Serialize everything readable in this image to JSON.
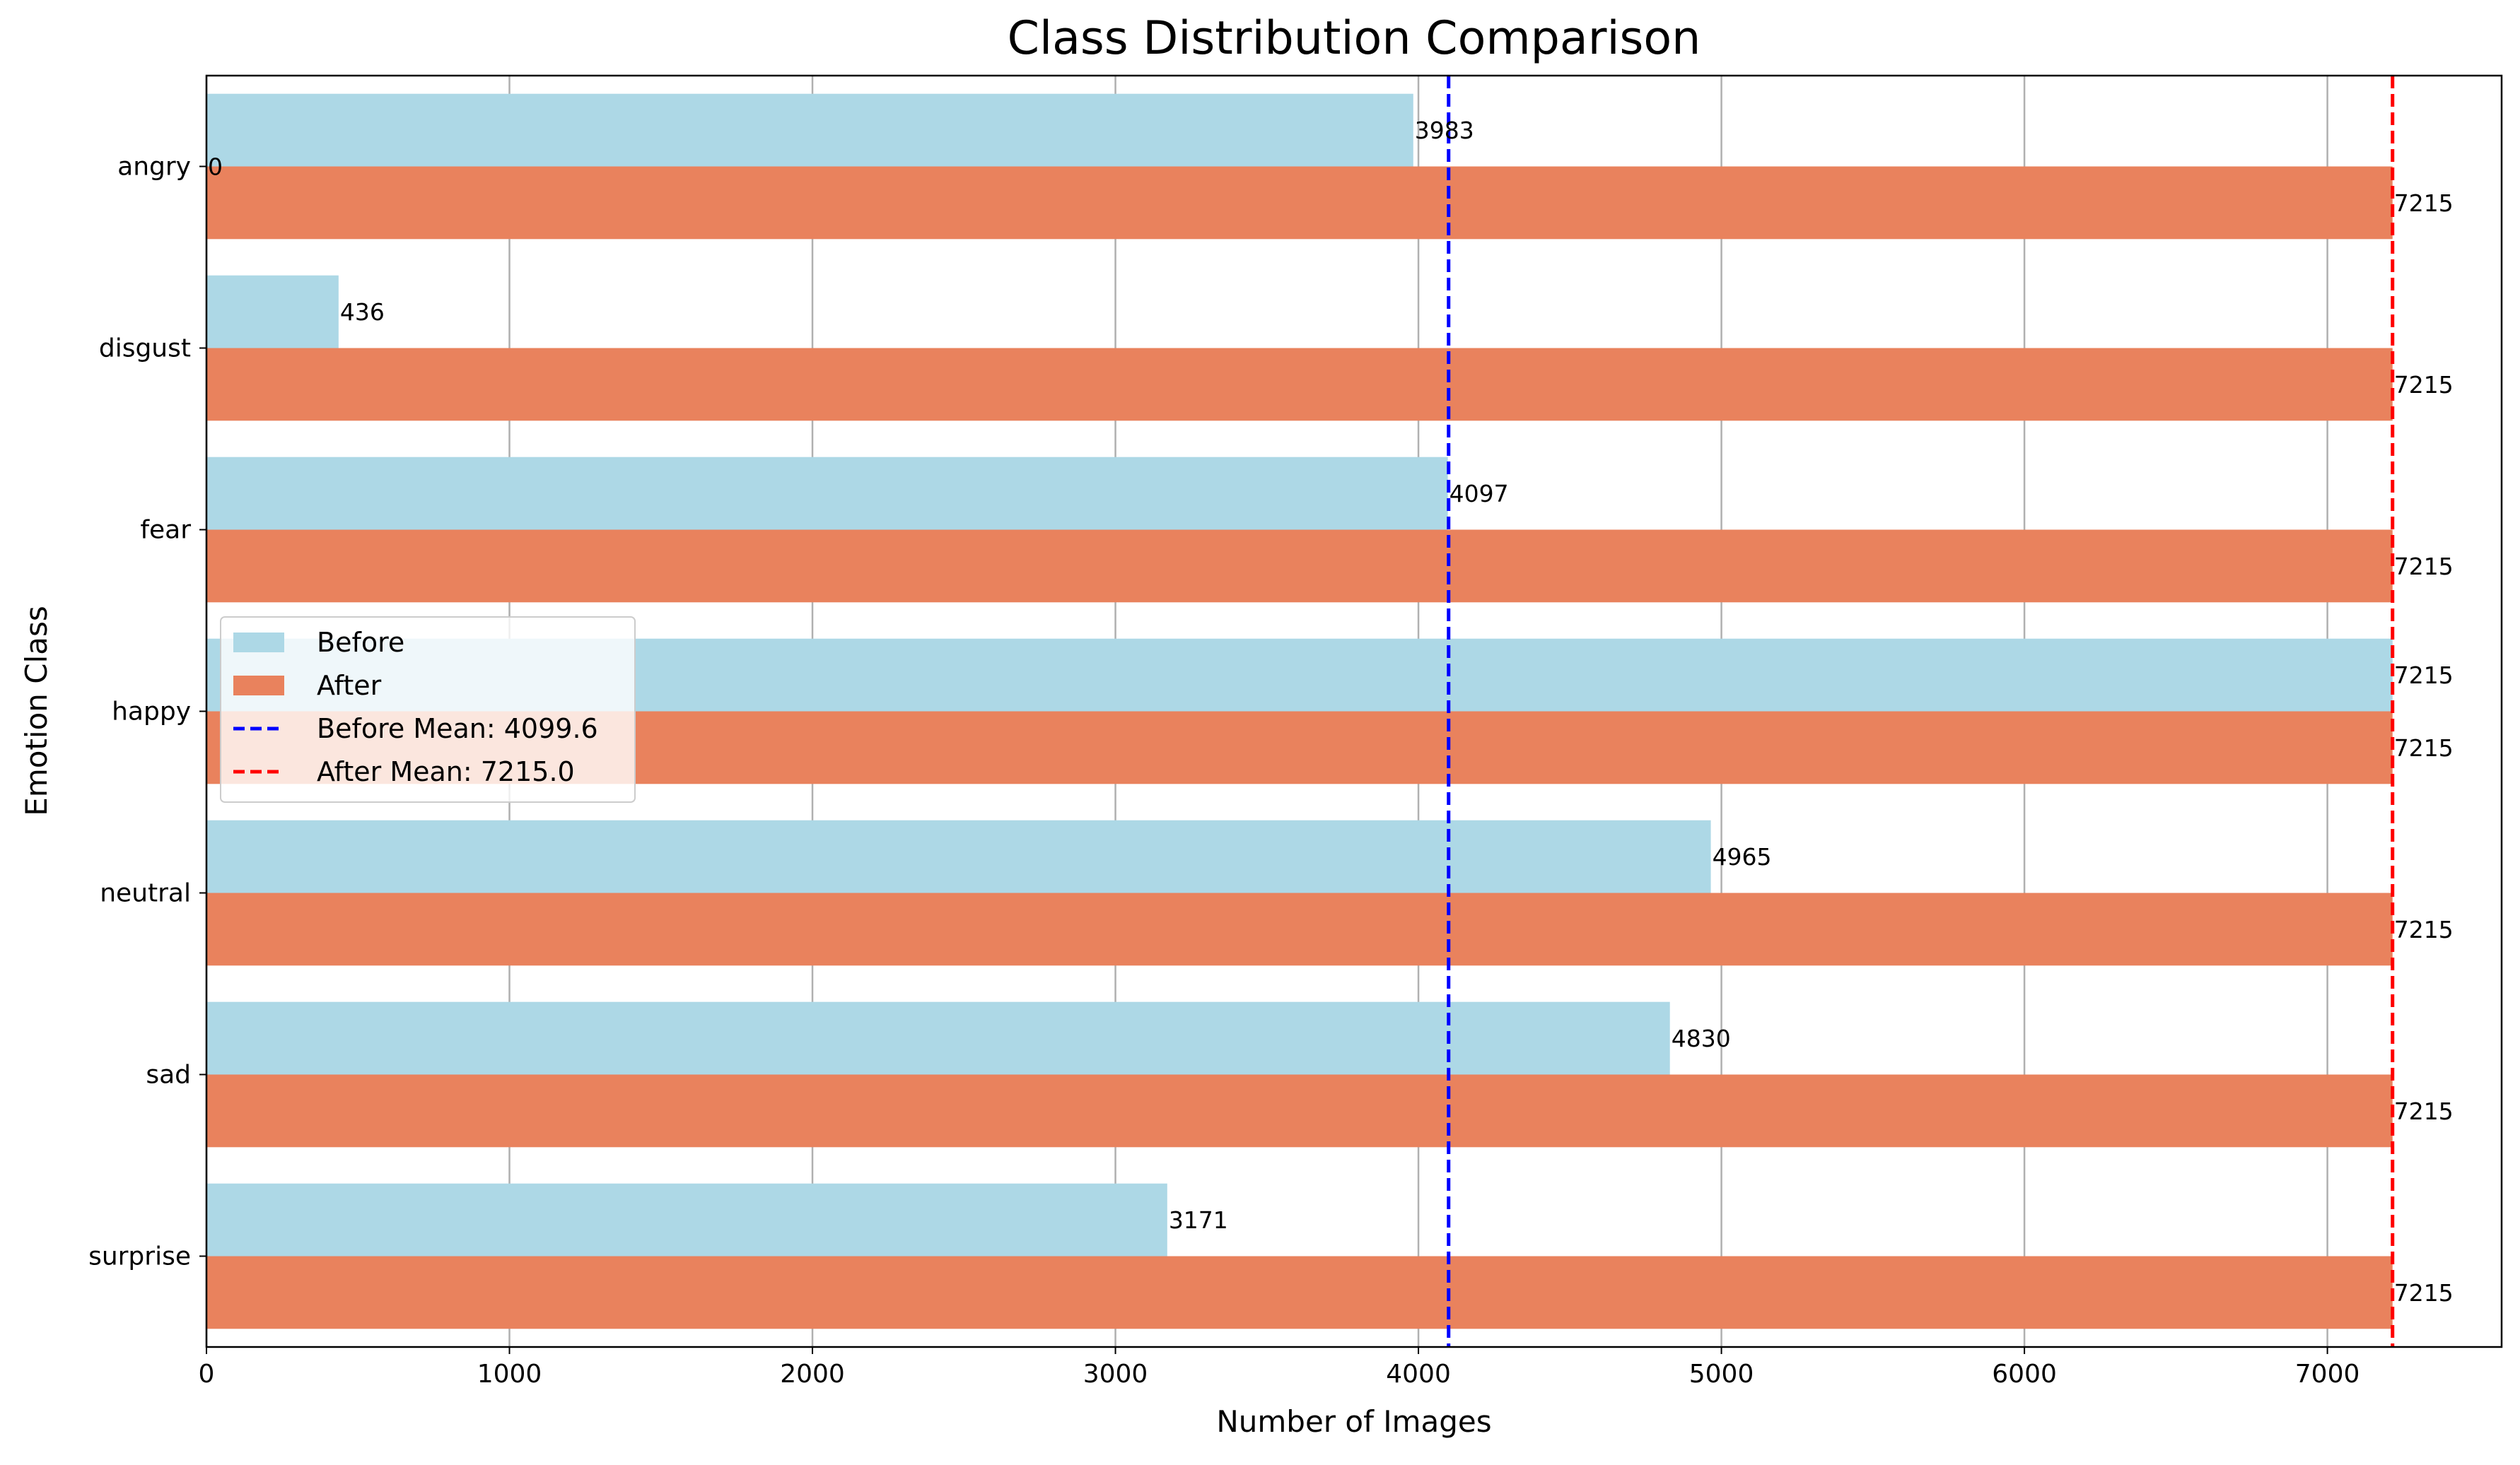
{
  "chart_data": {
    "type": "bar",
    "orientation": "horizontal",
    "title": "Class Distribution Comparison",
    "xlabel": "Number of Images",
    "ylabel": "Emotion Class",
    "xlim": [
      0,
      7575
    ],
    "xticks": [
      0,
      1000,
      2000,
      3000,
      4000,
      5000,
      6000,
      7000
    ],
    "categories": [
      "angry",
      "disgust",
      "fear",
      "happy",
      "neutral",
      "sad",
      "surprise"
    ],
    "series": [
      {
        "name": "Before",
        "color": "#add8e6",
        "values": [
          3983,
          436,
          4097,
          7215,
          4965,
          4830,
          3171
        ],
        "labels": [
          "3983",
          "436",
          "4097",
          "7215",
          "4965",
          "4830",
          "3171"
        ]
      },
      {
        "name": "After",
        "color": "#e9825d",
        "values": [
          7215,
          7215,
          7215,
          7215,
          7215,
          7215,
          7215
        ],
        "labels": [
          "7215",
          "7215",
          "7215",
          "7215",
          "7215",
          "7215",
          "7215"
        ]
      }
    ],
    "extra_labels": [
      {
        "category": "angry",
        "text": "0"
      }
    ],
    "mean_lines": [
      {
        "name": "Before Mean: 4099.6",
        "value": 4099.6,
        "color": "#0000ff"
      },
      {
        "name": "After Mean: 7215.0",
        "value": 7215.0,
        "color": "#ff0000"
      }
    ],
    "grid": "vertical",
    "legend_position": "center-left"
  }
}
